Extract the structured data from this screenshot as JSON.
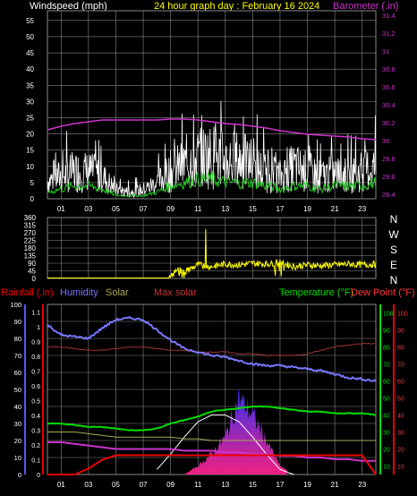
{
  "header": {
    "windspeed_label": "Windspeed (mph)",
    "date_title": "24 hour graph day : February 16 2024",
    "barometer_label": "Barometer (.in)"
  },
  "panel3_header": {
    "rainfall_label": "Rainfall (.in)",
    "humidity_label": "Humidity",
    "solar_label": "Solar",
    "max_solar_label": "Max solar",
    "temperature_label": "Temperature (°F)",
    "dewpoint_label": "Dew Point (°F)"
  },
  "colors": {
    "wind": "#ffffff",
    "wind_avg": "#22cc22",
    "barometer": "#cc33cc",
    "direction": "#ffff00",
    "humidity": "#7777ff",
    "temperature": "#00dd00",
    "dewpoint": "#ff3333",
    "rainfall": "#ee0000",
    "solar": "#cc33cc",
    "max_solar": "#ffffff",
    "grid": "#888888"
  },
  "hour_ticks": [
    "01",
    "03",
    "05",
    "07",
    "09",
    "11",
    "13",
    "15",
    "17",
    "19",
    "21",
    "23"
  ],
  "chart_data": [
    {
      "type": "line",
      "title": "24 hour graph day : February 16 2024",
      "ylabel": "Windspeed (mph)",
      "y2label": "Barometer (.in)",
      "y_ticks": [
        "0",
        "5",
        "10",
        "15",
        "20",
        "25",
        "30",
        "35",
        "40",
        "45",
        "50",
        "55"
      ],
      "y2_ticks": [
        "29.4",
        "29.6",
        "29.8",
        "30",
        "30.2",
        "30.4",
        "30.6",
        "30.8",
        "31",
        "31.2",
        "31.4"
      ],
      "ylim": [
        0,
        58
      ],
      "y2lim": [
        29.35,
        31.45
      ],
      "x": [
        0,
        1,
        2,
        3,
        4,
        5,
        6,
        7,
        8,
        9,
        10,
        11,
        12,
        13,
        14,
        15,
        16,
        17,
        18,
        19,
        20,
        21,
        22,
        23,
        24
      ],
      "series": [
        {
          "values": [
            8,
            10,
            12,
            12,
            10,
            4,
            3,
            4,
            7,
            12,
            15,
            18,
            19,
            17,
            17,
            15,
            11,
            10,
            14,
            12,
            10,
            11,
            10,
            12,
            14
          ]
        },
        {
          "values": [
            2,
            3,
            4,
            4,
            3,
            1,
            1,
            1,
            2,
            4,
            5,
            6,
            6,
            5,
            5,
            5,
            4,
            3,
            4,
            4,
            3,
            4,
            4,
            4,
            5
          ]
        },
        {
          "values": [
            30.12,
            30.16,
            30.19,
            30.21,
            30.23,
            30.23,
            30.23,
            30.23,
            30.23,
            30.24,
            30.24,
            30.23,
            30.21,
            30.19,
            30.18,
            30.16,
            30.14,
            30.11,
            30.09,
            30.07,
            30.06,
            30.05,
            30.04,
            30.02,
            30.01
          ]
        }
      ]
    },
    {
      "type": "line",
      "y_ticks": [
        "360",
        "315",
        "270",
        "225",
        "180",
        "135",
        "90",
        "45",
        "0"
      ],
      "ylim": [
        0,
        360
      ],
      "compass_labels": [
        "N",
        "W",
        "S",
        "E",
        "N"
      ],
      "x": [
        0,
        1,
        2,
        3,
        4,
        5,
        6,
        7,
        8,
        9,
        9.5,
        10,
        11,
        12,
        13,
        14,
        15,
        16,
        17,
        18,
        19,
        20,
        21,
        22,
        23,
        24
      ],
      "series": [
        {
          "values": [
            0,
            0,
            0,
            0,
            0,
            0,
            0,
            0,
            0,
            0,
            60,
            40,
            80,
            70,
            85,
            80,
            90,
            85,
            95,
            70,
            80,
            75,
            80,
            85,
            80,
            85
          ]
        }
      ]
    },
    {
      "type": "line",
      "ylabel": "Rainfall (.in)",
      "y_ticks_humidity": [
        "100",
        "90",
        "80",
        "70",
        "60",
        "50",
        "40",
        "30",
        "20",
        "10",
        "0"
      ],
      "y_ticks_rain": [
        "1.1",
        "1",
        "0.9",
        "0.8",
        "0.7",
        "0.6",
        "0.5",
        "0.4",
        "0.3",
        "0.2",
        "0.1",
        "0"
      ],
      "y_ticks_temp": [
        "100",
        "90",
        "80",
        "70",
        "60",
        "50",
        "40",
        "30",
        "20",
        "10"
      ],
      "y_ticks_dew": [
        "100",
        "90",
        "80",
        "70",
        "60",
        "50",
        "40",
        "30",
        "20",
        "10"
      ],
      "x": [
        0,
        1,
        2,
        3,
        4,
        5,
        6,
        7,
        8,
        9,
        10,
        11,
        12,
        13,
        14,
        15,
        16,
        17,
        18,
        19,
        20,
        21,
        22,
        23,
        24
      ],
      "series": [
        {
          "name": "Humidity",
          "values": [
            88,
            82,
            81,
            80,
            86,
            91,
            92,
            91,
            85,
            79,
            74,
            72,
            70,
            69,
            67,
            65,
            64,
            64,
            63,
            62,
            61,
            59,
            57,
            56,
            55
          ]
        },
        {
          "name": "Temperature",
          "values": [
            35,
            35,
            34,
            33,
            33,
            32,
            31,
            31,
            32,
            35,
            37,
            39,
            42,
            43,
            44,
            45,
            45,
            44,
            43,
            42,
            42,
            41,
            41,
            41,
            40
          ]
        },
        {
          "name": "Dew Point",
          "values": [
            80,
            80,
            79,
            78,
            78,
            79,
            80,
            80,
            79,
            78,
            78,
            77,
            77,
            77,
            76,
            76,
            75,
            75,
            75,
            76,
            78,
            80,
            81,
            82,
            82
          ]
        },
        {
          "name": "Rainfall",
          "values": [
            0,
            0,
            0,
            0.04,
            0.1,
            0.13,
            0.13,
            0.13,
            0.13,
            0.13,
            0.13,
            0.13,
            0.13,
            0.13,
            0.13,
            0.13,
            0.13,
            0.13,
            0.13,
            0.13,
            0.13,
            0.13,
            0.13,
            0.13,
            0.0
          ]
        },
        {
          "name": "Solar",
          "values": [
            0,
            0,
            0,
            0,
            0,
            0,
            0,
            0,
            0,
            0,
            0,
            5,
            12,
            22,
            45,
            35,
            20,
            5,
            0,
            0,
            0,
            0,
            0,
            0,
            0
          ]
        },
        {
          "name": "Max solar",
          "values": [
            0,
            0,
            0,
            0,
            0,
            0,
            0,
            0,
            3,
            12,
            22,
            31,
            35,
            35,
            31,
            22,
            12,
            3,
            0,
            0,
            0,
            0,
            0,
            0,
            0
          ]
        }
      ]
    }
  ]
}
